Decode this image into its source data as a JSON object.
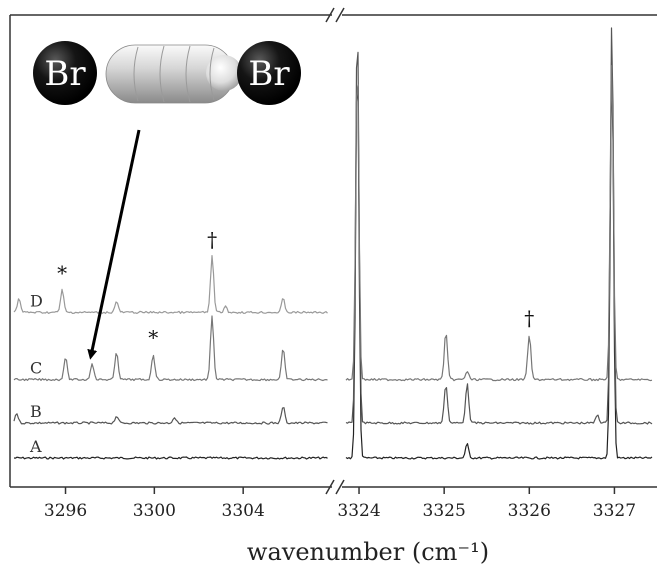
{
  "chart_data": {
    "type": "line",
    "title": "",
    "xlabel": "wavenumber (cm⁻¹)",
    "ylabel": "",
    "grid": false,
    "broken_x_axis": true,
    "panels": [
      {
        "xlim": [
          3293.5,
          3308
        ],
        "ticks": [
          3296,
          3300,
          3304
        ],
        "tick_labels": [
          "3296",
          "3300",
          "3304"
        ]
      },
      {
        "xlim": [
          3323.8,
          3327.5
        ],
        "ticks": [
          3324,
          3325,
          3326,
          3327
        ],
        "tick_labels": [
          "3324",
          "3325",
          "3326",
          "3327"
        ]
      }
    ],
    "series": [
      {
        "name": "A",
        "offset": 0,
        "peaks_left": [],
        "peaks_right": [
          [
            3323.98,
            2.9
          ],
          [
            3325.27,
            0.1
          ],
          [
            3326.97,
            2.9
          ]
        ]
      },
      {
        "name": "B",
        "offset": 0.25,
        "peaks_left": [
          [
            3293.8,
            0.07
          ],
          [
            3298.3,
            0.05
          ],
          [
            3300.9,
            0.04
          ],
          [
            3305.8,
            0.12
          ]
        ],
        "peaks_right": [
          [
            3323.98,
            2.9
          ],
          [
            3325.02,
            0.28
          ],
          [
            3325.27,
            0.28
          ],
          [
            3326.8,
            0.06
          ],
          [
            3326.97,
            2.9
          ]
        ]
      },
      {
        "name": "C",
        "offset": 0.56,
        "peaks_left": [
          [
            3296.0,
            0.16
          ],
          [
            3297.2,
            0.12
          ],
          [
            3298.3,
            0.2
          ],
          [
            3299.95,
            0.18
          ],
          [
            3302.6,
            0.45
          ],
          [
            3305.8,
            0.22
          ]
        ],
        "peaks_right": [
          [
            3323.98,
            2.3
          ],
          [
            3325.02,
            0.34
          ],
          [
            3325.27,
            0.06
          ],
          [
            3326.0,
            0.32
          ],
          [
            3326.97,
            2.3
          ]
        ]
      },
      {
        "name": "D",
        "offset": 1.04,
        "peaks_left": [
          [
            3293.9,
            0.1
          ],
          [
            3295.85,
            0.16
          ],
          [
            3298.3,
            0.08
          ],
          [
            3302.6,
            0.4
          ],
          [
            3303.2,
            0.04
          ],
          [
            3305.8,
            0.1
          ]
        ],
        "peaks_right": []
      }
    ],
    "annotations": [
      {
        "text": "*",
        "trace": "D",
        "x": 3295.85
      },
      {
        "text": "†",
        "trace": "D",
        "x": 3302.6
      },
      {
        "text": "*",
        "trace": "C",
        "x": 3299.95
      },
      {
        "text": "†",
        "trace": "C",
        "x": 3326.0
      }
    ],
    "arrow_target": {
      "trace": "C",
      "x": 3297.2
    }
  },
  "molecule": {
    "left_atom": "Br",
    "right_atom": "Br"
  }
}
